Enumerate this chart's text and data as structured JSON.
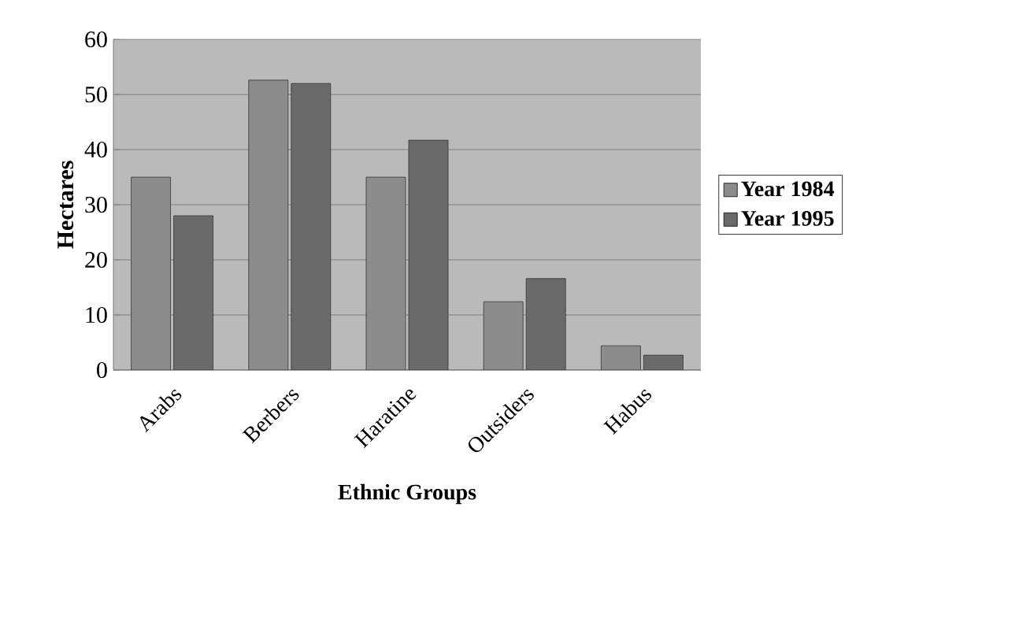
{
  "chart_data": {
    "type": "bar",
    "xlabel": "Ethnic Groups",
    "ylabel": "Hectares",
    "categories": [
      "Arabs",
      "Berbers",
      "Haratine",
      "Outsiders",
      "Habus"
    ],
    "series": [
      {
        "name": "Year 1984",
        "color": "#8c8c8c",
        "values": [
          35,
          52.6,
          35,
          12.4,
          4.4
        ]
      },
      {
        "name": "Year 1995",
        "color": "#6a6a6a",
        "values": [
          28,
          52,
          41.7,
          16.6,
          2.7
        ]
      }
    ],
    "ylim": [
      0,
      60
    ],
    "yticks": [
      0,
      10,
      20,
      30,
      40,
      50,
      60
    ],
    "grid": "y",
    "legend": "right"
  }
}
